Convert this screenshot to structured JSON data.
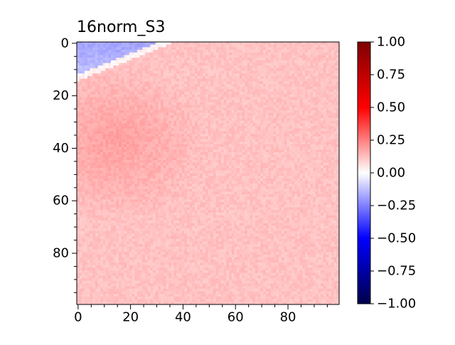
{
  "chart_data": {
    "type": "heatmap",
    "title": "16norm_S3",
    "xlabel": "",
    "ylabel": "",
    "grid_size": 100,
    "xlim": [
      -0.5,
      99.5
    ],
    "ylim": [
      99.5,
      -0.5
    ],
    "x_ticks": [
      0,
      20,
      40,
      60,
      80
    ],
    "x_tick_labels": [
      "0",
      "20",
      "40",
      "60",
      "80"
    ],
    "y_ticks": [
      0,
      20,
      40,
      60,
      80
    ],
    "y_tick_labels": [
      "0",
      "20",
      "40",
      "60",
      "80"
    ],
    "colormap": "seismic",
    "colormap_stops": [
      "#00004c",
      "#0000ff",
      "#ffffff",
      "#ff0000",
      "#7f0000"
    ],
    "vmin": -1.0,
    "vmax": 1.0,
    "colorbar_ticks": [
      1.0,
      0.75,
      0.5,
      0.25,
      0.0,
      -0.25,
      -0.5,
      -0.75,
      -1.0
    ],
    "colorbar_tick_labels": [
      "1.00",
      "0.75",
      "0.50",
      "0.25",
      "0.00",
      "−0.25",
      "−0.50",
      "−0.75",
      "−1.00"
    ],
    "background_value": 0.12,
    "regions": [
      {
        "desc": "negative wedge along top-left edge",
        "rows": [
          0,
          12
        ],
        "cols": [
          0,
          30
        ],
        "value": -0.12
      },
      {
        "desc": "stronger positive band",
        "rows": [
          18,
          60
        ],
        "cols": [
          0,
          40
        ],
        "value": 0.18
      }
    ]
  }
}
